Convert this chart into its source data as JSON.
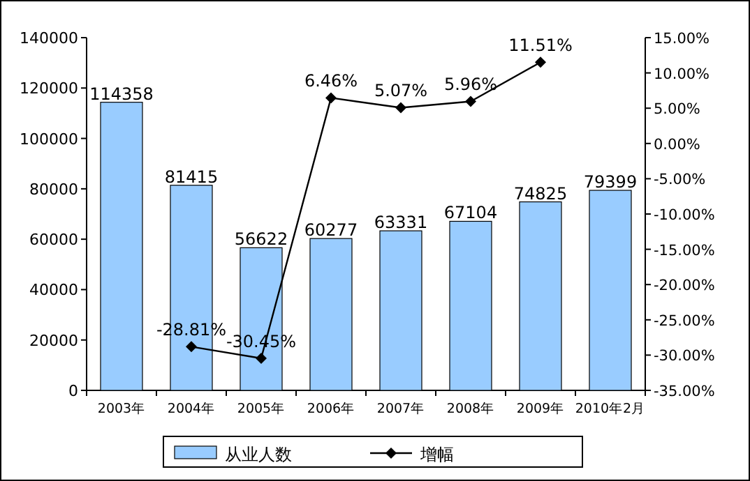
{
  "chart_data": {
    "type": "bar",
    "categories": [
      "2003年",
      "2004年",
      "2005年",
      "2006年",
      "2007年",
      "2008年",
      "2009年",
      "2010年2月"
    ],
    "series": [
      {
        "name": "从业人数",
        "color": "#99ccff",
        "values": [
          114358,
          81415,
          56622,
          60277,
          63331,
          67104,
          74825,
          79399
        ],
        "value_labels": [
          "114358",
          "81415",
          "56622",
          "60277",
          "63331",
          "67104",
          "74825",
          "79399"
        ]
      },
      {
        "name": "增幅",
        "type": "line",
        "axis": "y2",
        "color": "#000000",
        "marker": "diamond",
        "values": [
          null,
          -28.81,
          -30.45,
          6.46,
          5.07,
          5.96,
          11.51,
          null
        ],
        "value_labels": [
          null,
          "-28.81%",
          "-30.45%",
          "6.46%",
          "5.07%",
          "5.96%",
          "11.51%",
          null
        ]
      }
    ],
    "ylim": [
      0,
      140000
    ],
    "yticks": [
      0,
      20000,
      40000,
      60000,
      80000,
      100000,
      120000,
      140000
    ],
    "y2lim": [
      -35,
      15
    ],
    "y2ticks": [
      {
        "value": -35,
        "label": "-35.00%"
      },
      {
        "value": -30,
        "label": "-30.00%"
      },
      {
        "value": -25,
        "label": "-25.00%"
      },
      {
        "value": -20,
        "label": "-20.00%"
      },
      {
        "value": -15,
        "label": "-15.00%"
      },
      {
        "value": -10,
        "label": "-10.00%"
      },
      {
        "value": -5,
        "label": "-5.00%"
      },
      {
        "value": 0,
        "label": "0.00%"
      },
      {
        "value": 5,
        "label": "5.00%"
      },
      {
        "value": 10,
        "label": "10.00%"
      },
      {
        "value": 15,
        "label": "15.00%"
      }
    ],
    "legend": "bottom"
  }
}
